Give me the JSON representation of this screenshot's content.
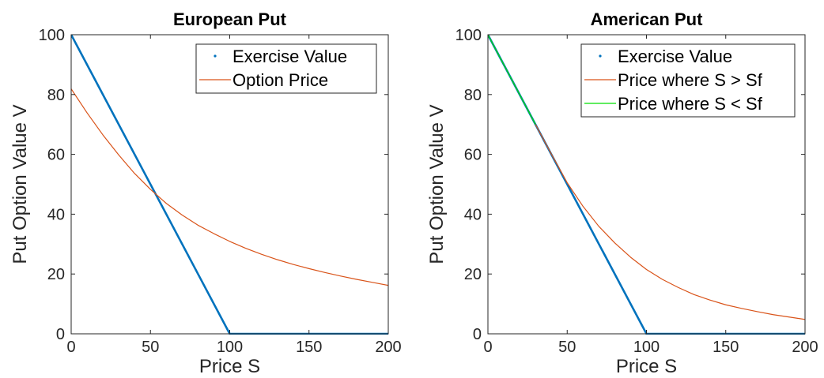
{
  "chart_data": [
    {
      "type": "line",
      "title": "European Put",
      "xlabel": "Price S",
      "ylabel": "Put Option Value V",
      "xlim": [
        0,
        200
      ],
      "ylim": [
        0,
        100
      ],
      "xticks": [
        "0",
        "50",
        "100",
        "150",
        "200"
      ],
      "yticks": [
        "0",
        "20",
        "40",
        "60",
        "80",
        "100"
      ],
      "grid": false,
      "legend_position": "top-right",
      "series": [
        {
          "name": "Exercise Value",
          "color": "#0072BD",
          "style": "dots",
          "points": [
            [
              0,
              100
            ],
            [
              100,
              0
            ],
            [
              200,
              0
            ]
          ]
        },
        {
          "name": "Option Price",
          "color": "#D95319",
          "style": "line",
          "points": [
            [
              0,
              81.9
            ],
            [
              10,
              73.9
            ],
            [
              20,
              66.5
            ],
            [
              30,
              59.8
            ],
            [
              40,
              53.6
            ],
            [
              50,
              48.3
            ],
            [
              60,
              43.6
            ],
            [
              70,
              39.7
            ],
            [
              80,
              36.3
            ],
            [
              90,
              33.5
            ],
            [
              100,
              30.9
            ],
            [
              110,
              28.6
            ],
            [
              120,
              26.6
            ],
            [
              130,
              24.8
            ],
            [
              140,
              23.2
            ],
            [
              150,
              21.8
            ],
            [
              160,
              20.5
            ],
            [
              170,
              19.3
            ],
            [
              180,
              18.2
            ],
            [
              190,
              17.2
            ],
            [
              200,
              16.2
            ]
          ]
        }
      ]
    },
    {
      "type": "line",
      "title": "American Put",
      "xlabel": "Price S",
      "ylabel": "Put Option Value V",
      "xlim": [
        0,
        200
      ],
      "ylim": [
        0,
        100
      ],
      "xticks": [
        "0",
        "50",
        "100",
        "150",
        "200"
      ],
      "yticks": [
        "0",
        "20",
        "40",
        "60",
        "80",
        "100"
      ],
      "grid": false,
      "legend_position": "top-right",
      "series": [
        {
          "name": "Exercise Value",
          "color": "#0072BD",
          "style": "dots",
          "points": [
            [
              0,
              100
            ],
            [
              100,
              0
            ],
            [
              200,
              0
            ]
          ]
        },
        {
          "name": "Price where S > Sf",
          "color": "#D95319",
          "style": "line",
          "points": [
            [
              30,
              70
            ],
            [
              40,
              60.1
            ],
            [
              50,
              50.5
            ],
            [
              60,
              42.6
            ],
            [
              70,
              35.9
            ],
            [
              80,
              30.4
            ],
            [
              90,
              25.6
            ],
            [
              100,
              21.5
            ],
            [
              110,
              18.2
            ],
            [
              120,
              15.5
            ],
            [
              130,
              13.1
            ],
            [
              140,
              11.3
            ],
            [
              150,
              9.7
            ],
            [
              160,
              8.5
            ],
            [
              170,
              7.4
            ],
            [
              180,
              6.4
            ],
            [
              190,
              5.6
            ],
            [
              200,
              4.8
            ]
          ]
        },
        {
          "name": "Price where S < Sf",
          "color": "#00E000",
          "style": "line",
          "points": [
            [
              0,
              100
            ],
            [
              30,
              70
            ]
          ]
        }
      ]
    }
  ]
}
